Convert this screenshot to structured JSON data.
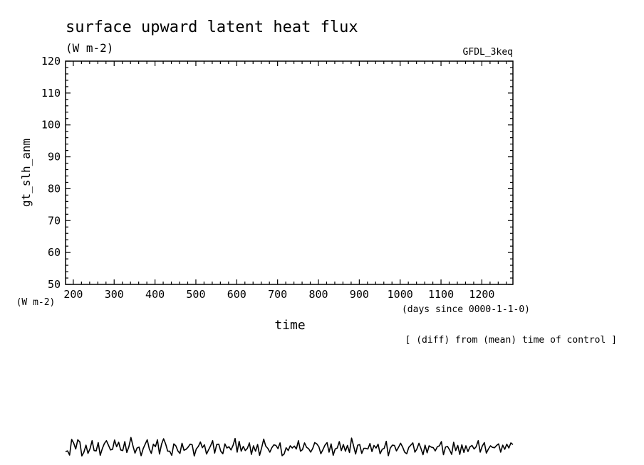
{
  "chart_data": {
    "type": "line",
    "title": "surface upward latent heat flux",
    "units": "(W m-2)",
    "model_label": "GFDL_3keq",
    "ylabel": "gt_slh_anm",
    "y_units_label": "(W m-2)",
    "xlabel": "time",
    "x_units_label": "(days since 0000-1-1-0)",
    "note": "[ (diff) from (mean) time of control ]",
    "xlim": [
      181,
      1276
    ],
    "ylim": [
      50,
      120
    ],
    "x_ticks": [
      "200",
      "300",
      "400",
      "500",
      "600",
      "700",
      "800",
      "900",
      "1000",
      "1100",
      "1200"
    ],
    "y_ticks": [
      "50",
      "60",
      "70",
      "80",
      "90",
      "100",
      "110",
      "120"
    ],
    "grid": false,
    "series": [
      {
        "x": [
          181,
          186,
          191,
          196,
          201,
          206,
          211,
          216,
          221,
          226,
          231,
          236,
          241,
          246,
          251,
          256,
          261,
          266,
          271,
          276,
          281,
          286,
          291,
          296,
          301,
          306,
          311,
          316,
          321,
          326,
          331,
          336,
          341,
          346,
          351,
          356,
          361,
          366,
          371,
          376,
          381,
          386,
          391,
          396,
          401,
          406,
          411,
          416,
          421,
          426,
          431,
          436,
          441,
          446,
          451,
          456,
          461,
          466,
          471,
          476,
          481,
          486,
          491,
          496,
          501,
          506,
          511,
          516,
          521,
          526,
          531,
          536,
          541,
          546,
          551,
          556,
          561,
          566,
          571,
          576,
          581,
          586,
          591,
          596,
          601,
          606,
          611,
          616,
          621,
          626,
          631,
          636,
          641,
          646,
          651,
          656,
          661,
          666,
          671,
          676,
          681,
          686,
          691,
          696,
          701,
          706,
          711,
          716,
          721,
          726,
          731,
          736,
          741,
          746,
          751,
          756,
          761,
          766,
          771,
          776,
          781,
          786,
          791,
          796,
          801,
          806,
          811,
          816,
          821,
          826,
          831,
          836,
          841,
          846,
          851,
          856,
          861,
          866,
          871,
          876,
          881,
          886,
          891,
          896,
          901,
          906,
          911,
          916,
          921,
          926,
          931,
          936,
          941,
          946,
          951,
          956,
          961,
          966,
          971,
          976,
          981,
          986,
          991,
          996,
          1001,
          1006,
          1011,
          1016,
          1021,
          1026,
          1031,
          1036,
          1041,
          1046,
          1051,
          1056,
          1061,
          1066,
          1071,
          1076,
          1081,
          1086,
          1091,
          1096,
          1101,
          1106,
          1111,
          1116,
          1121,
          1126,
          1131,
          1136,
          1141,
          1146,
          1151,
          1156,
          1161,
          1166,
          1171,
          1176,
          1181,
          1186,
          1191,
          1196,
          1201,
          1206,
          1211,
          1216,
          1221,
          1226,
          1231,
          1236,
          1241,
          1246,
          1251,
          1256,
          1261,
          1266,
          1271,
          1276
        ],
        "y": [
          -2.4,
          -2.2,
          -3.5,
          1.4,
          0.2,
          -1.6,
          1.3,
          0.6,
          -3.8,
          -2.6,
          -0.4,
          -3.0,
          -1.5,
          1.0,
          -2.1,
          -2.2,
          0.4,
          -3.6,
          -1.5,
          0.1,
          1.0,
          -0.4,
          -1.9,
          -1.7,
          1.2,
          -0.9,
          0.5,
          -1.9,
          -2.1,
          0.7,
          -2.7,
          -0.9,
          2.0,
          -0.6,
          -2.9,
          -1.3,
          -1.0,
          -3.7,
          -1.5,
          -0.1,
          1.3,
          -1.6,
          -3.0,
          -0.1,
          -0.9,
          1.3,
          -3.2,
          -0.1,
          1.6,
          0.0,
          -2.3,
          -2.3,
          -3.6,
          0.0,
          -0.6,
          -2.2,
          -3.0,
          0.2,
          -2.0,
          -1.7,
          -1.0,
          -0.1,
          -0.3,
          -3.8,
          -1.6,
          -0.8,
          0.6,
          -1.2,
          -0.3,
          -3.2,
          -1.9,
          -0.6,
          1.0,
          -2.9,
          -0.2,
          -0.1,
          -2.3,
          -3.1,
          0.0,
          -1.3,
          -0.9,
          -1.9,
          -0.5,
          1.7,
          -2.6,
          0.8,
          -2.3,
          -0.8,
          -2.1,
          -1.4,
          0.3,
          -3.3,
          -0.6,
          -2.3,
          -0.2,
          -3.6,
          -1.2,
          1.5,
          -0.7,
          -1.4,
          -2.6,
          -1.2,
          -0.3,
          -0.5,
          -1.5,
          0.3,
          -3.7,
          -3.2,
          -1.2,
          -2.1,
          -0.6,
          -1.3,
          -0.7,
          -1.6,
          1.0,
          -2.3,
          -1.8,
          0.3,
          -1.1,
          -1.5,
          -2.6,
          -1.4,
          0.4,
          0.0,
          -0.9,
          -3.1,
          -1.8,
          -0.4,
          0.4,
          -2.6,
          0.0,
          -3.6,
          -1.6,
          -1.3,
          0.7,
          -2.1,
          -0.2,
          -2.3,
          -0.5,
          -2.7,
          1.8,
          -0.6,
          -3.2,
          -0.4,
          -0.2,
          -3.0,
          -1.4,
          -1.4,
          -1.6,
          0.1,
          -2.4,
          -0.5,
          -1.3,
          -0.1,
          -3.1,
          -1.7,
          -1.4,
          0.8,
          -3.7,
          -1.3,
          -0.4,
          -0.5,
          -2.2,
          -1.1,
          0.2,
          -1.0,
          -2.6,
          -3.1,
          -1.1,
          -0.4,
          0.3,
          -2.6,
          -1.6,
          0.2,
          -1.5,
          -3.4,
          -0.4,
          -2.8,
          -0.6,
          -1.0,
          -1.2,
          -2.2,
          -0.9,
          -0.6,
          0.7,
          -3.4,
          -1.0,
          -0.8,
          -1.9,
          -3.3,
          0.5,
          -2.1,
          -0.5,
          -3.3,
          -0.3,
          -2.7,
          -0.6,
          -2.4,
          -0.9,
          -0.5,
          -1.6,
          -0.9,
          1.0,
          -2.6,
          -0.7,
          0.4,
          -2.9,
          -1.6,
          -0.6,
          -1.1,
          -1.2,
          -0.5,
          0.0,
          -2.6,
          -0.4,
          -1.7,
          -0.1,
          -1.3,
          0.3,
          -0.2
        ]
      }
    ]
  }
}
